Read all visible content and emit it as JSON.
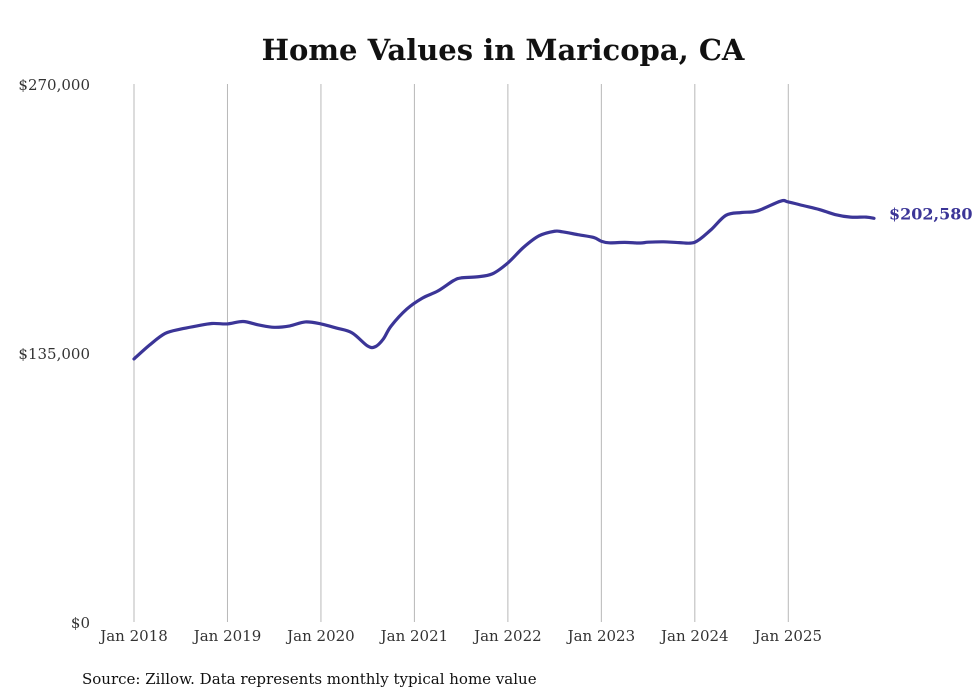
{
  "chart_data": {
    "type": "line",
    "title": "Home Values in Maricopa, CA",
    "xlabel": "",
    "ylabel": "",
    "ylim": [
      0,
      270000
    ],
    "yticks": [
      {
        "value": 0,
        "label": "$0"
      },
      {
        "value": 135000,
        "label": "$135,000"
      },
      {
        "value": 270000,
        "label": "$270,000"
      }
    ],
    "xticks": [
      {
        "value": 2018.0,
        "label": "Jan 2018"
      },
      {
        "value": 2019.0,
        "label": "Jan 2019"
      },
      {
        "value": 2020.0,
        "label": "Jan 2020"
      },
      {
        "value": 2021.0,
        "label": "Jan 2021"
      },
      {
        "value": 2022.0,
        "label": "Jan 2022"
      },
      {
        "value": 2023.0,
        "label": "Jan 2023"
      },
      {
        "value": 2024.0,
        "label": "Jan 2024"
      },
      {
        "value": 2025.0,
        "label": "Jan 2025"
      }
    ],
    "xlim": [
      2018.0,
      2025.917
    ],
    "grid": "vertical",
    "series": [
      {
        "name": "Typical home value",
        "color": "#3b3597",
        "x": [
          2018.0,
          2018.167,
          2018.333,
          2018.5,
          2018.667,
          2018.833,
          2019.0,
          2019.167,
          2019.333,
          2019.5,
          2019.667,
          2019.833,
          2020.0,
          2020.167,
          2020.333,
          2020.5,
          2020.583,
          2020.667,
          2020.75,
          2020.917,
          2021.083,
          2021.25,
          2021.417,
          2021.5,
          2021.667,
          2021.833,
          2022.0,
          2022.167,
          2022.333,
          2022.5,
          2022.583,
          2022.75,
          2022.917,
          2023.0,
          2023.083,
          2023.25,
          2023.417,
          2023.5,
          2023.667,
          2023.833,
          2024.0,
          2024.167,
          2024.333,
          2024.5,
          2024.667,
          2024.917,
          2025.0,
          2025.167,
          2025.333,
          2025.5,
          2025.667,
          2025.833,
          2025.917
        ],
        "values": [
          132000,
          139000,
          144800,
          147000,
          148500,
          149800,
          149600,
          150800,
          149100,
          147900,
          148600,
          150600,
          149600,
          147500,
          145100,
          138500,
          138200,
          142000,
          148500,
          157000,
          162500,
          166100,
          171300,
          172700,
          173200,
          174700,
          180200,
          188000,
          193800,
          196100,
          195800,
          194400,
          193000,
          191100,
          190300,
          190500,
          190200,
          190600,
          190800,
          190400,
          190600,
          196600,
          204100,
          205500,
          206300,
          211200,
          210800,
          208900,
          207000,
          204500,
          203200,
          203200,
          202580
        ]
      }
    ],
    "end_label": "$202,580",
    "source": "Source: Zillow. Data represents monthly typical home value"
  }
}
